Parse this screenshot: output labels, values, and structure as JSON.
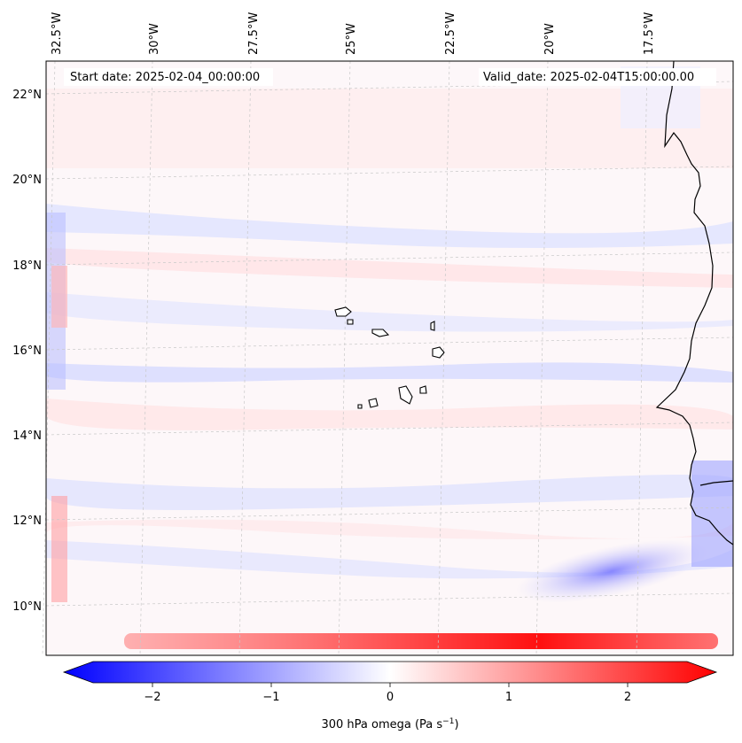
{
  "map": {
    "header": {
      "start_date": "Start date: 2025-02-04_00:00:00",
      "valid_date": "Valid_date: 2025-02-04T15:00:00.00"
    },
    "lon_labels": [
      "32.5°W",
      "30°W",
      "27.5°W",
      "25°W",
      "22.5°W",
      "20°W",
      "17.5°W"
    ],
    "lat_labels": [
      "22°N",
      "20°N",
      "18°N",
      "16°N",
      "14°N",
      "12°N",
      "10°N"
    ],
    "colorbar": {
      "ticks": [
        "−2",
        "−1",
        "0",
        "1",
        "2"
      ],
      "label": "300 hPa omega (Pa s",
      "label_exp": "−1",
      "label_end": ")"
    },
    "colors": {
      "negative": "#0000ff",
      "positive": "#ff0000",
      "neutral": "#ffffff",
      "coast": "#000000",
      "grid": "#c8c8c8"
    }
  }
}
